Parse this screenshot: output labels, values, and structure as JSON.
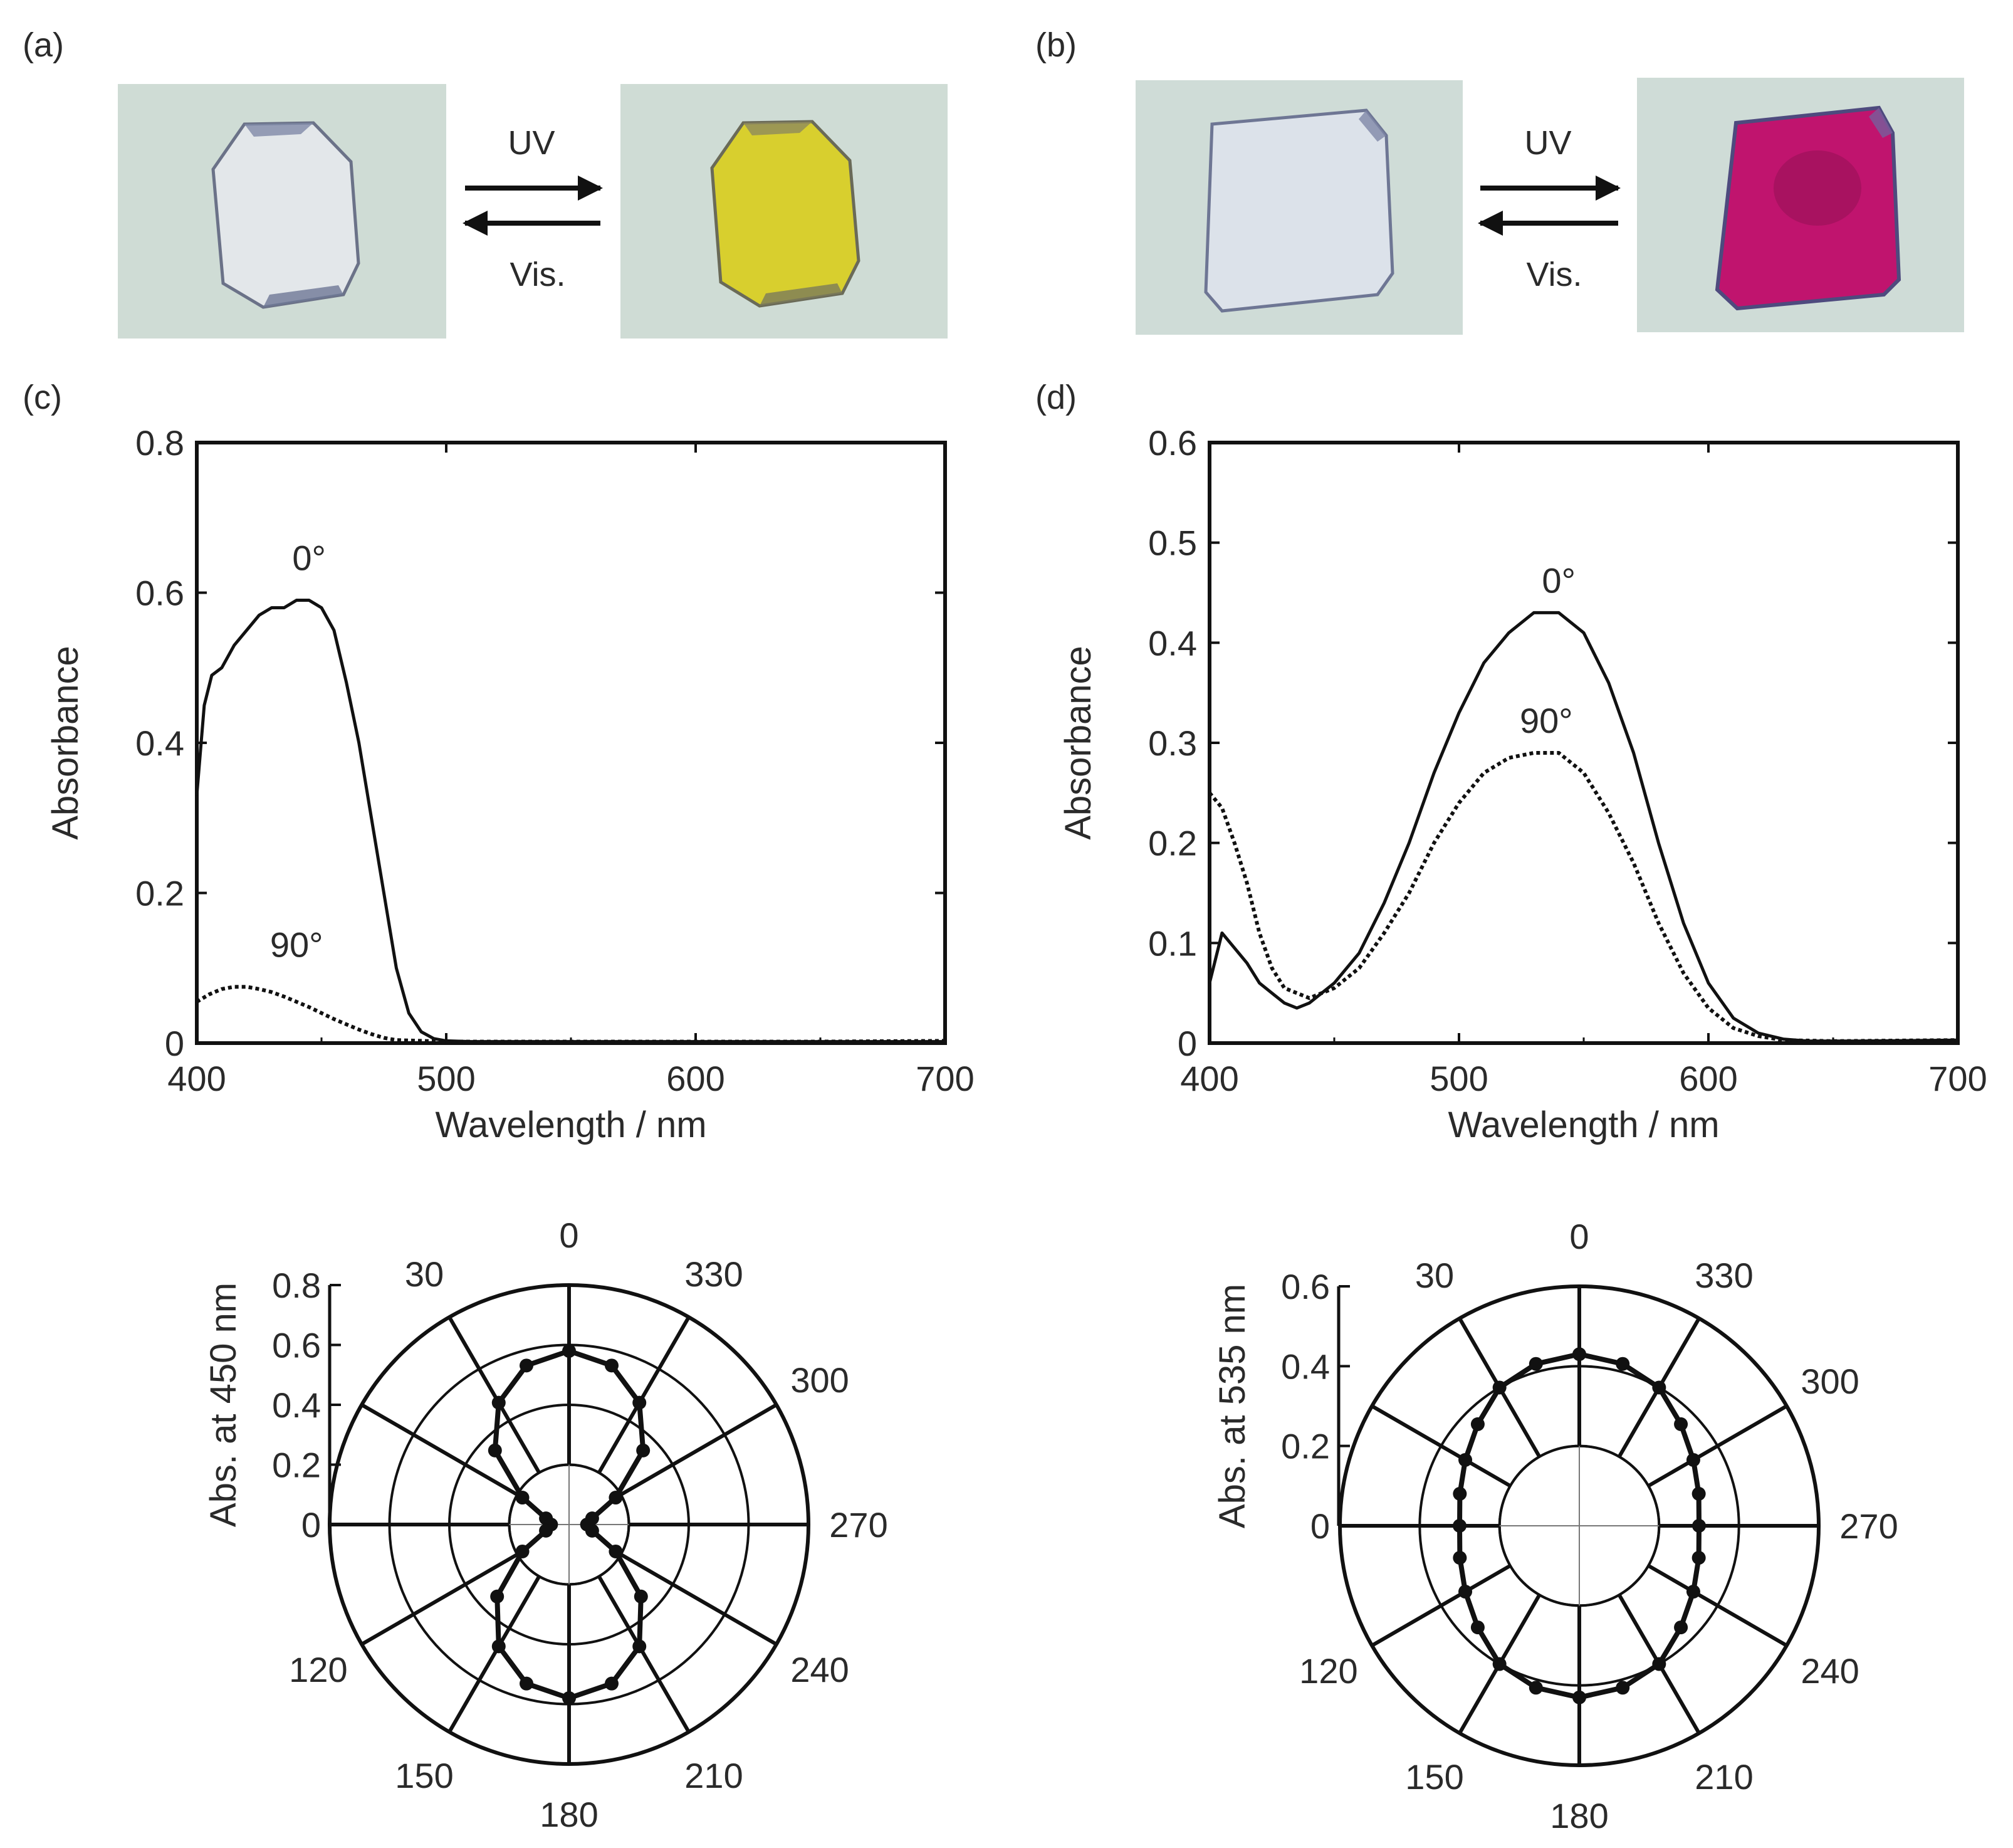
{
  "panels": {
    "a": {
      "label": "(a)",
      "forward": "UV",
      "reverse": "Vis.",
      "colors": {
        "background": "#cfdcd5",
        "before": "#e3e7ea",
        "after": "#d8cf2e",
        "edge": "#5a6070"
      }
    },
    "b": {
      "label": "(b)",
      "forward": "UV",
      "reverse": "Vis.",
      "colors": {
        "background": "#cfdcd7",
        "before": "#dce2ea",
        "after": "#c0146e",
        "edge": "#4a4a7a"
      }
    },
    "c": {
      "label": "(c)"
    },
    "d": {
      "label": "(d)"
    }
  },
  "chart_data": [
    {
      "id": "c-spectrum",
      "type": "line",
      "xlabel": "Wavelength / nm",
      "ylabel": "Absorbance",
      "xlim": [
        400,
        700
      ],
      "ylim": [
        0,
        0.8
      ],
      "xticks": [
        "400",
        "500",
        "600",
        "700"
      ],
      "yticks": [
        "0",
        "0.2",
        "0.4",
        "0.6",
        "0.8"
      ],
      "ytick_values": [
        0,
        0.2,
        0.4,
        0.6,
        0.8
      ],
      "series": [
        {
          "name": "0°",
          "style": "solid",
          "x": [
            400,
            403,
            406,
            410,
            415,
            420,
            425,
            430,
            435,
            440,
            445,
            450,
            455,
            460,
            465,
            470,
            475,
            480,
            485,
            490,
            495,
            500,
            510,
            520,
            540,
            560,
            600,
            650,
            700
          ],
          "y": [
            0.33,
            0.45,
            0.49,
            0.5,
            0.53,
            0.55,
            0.57,
            0.58,
            0.58,
            0.59,
            0.59,
            0.58,
            0.55,
            0.48,
            0.4,
            0.3,
            0.2,
            0.1,
            0.04,
            0.015,
            0.006,
            0.003,
            0.002,
            0.002,
            0.002,
            0.002,
            0.002,
            0.002,
            0.002
          ],
          "label_x": 445,
          "label_y": 0.63
        },
        {
          "name": "90°",
          "style": "dotted",
          "x": [
            400,
            405,
            410,
            415,
            420,
            425,
            430,
            435,
            440,
            445,
            450,
            455,
            460,
            465,
            470,
            475,
            480,
            490,
            500,
            550,
            600,
            650,
            700
          ],
          "y": [
            0.055,
            0.065,
            0.072,
            0.075,
            0.075,
            0.072,
            0.068,
            0.062,
            0.055,
            0.048,
            0.04,
            0.032,
            0.025,
            0.018,
            0.012,
            0.007,
            0.004,
            0.003,
            0.002,
            0.002,
            0.002,
            0.002,
            0.003
          ],
          "label_x": 440,
          "label_y": 0.115
        }
      ]
    },
    {
      "id": "d-spectrum",
      "type": "line",
      "xlabel": "Wavelength / nm",
      "ylabel": "Absorbance",
      "xlim": [
        400,
        700
      ],
      "ylim": [
        0,
        0.6
      ],
      "xticks": [
        "400",
        "500",
        "600",
        "700"
      ],
      "yticks": [
        "0",
        "0.1",
        "0.2",
        "0.3",
        "0.4",
        "0.5",
        "0.6"
      ],
      "ytick_values": [
        0,
        0.1,
        0.2,
        0.3,
        0.4,
        0.5,
        0.6
      ],
      "series": [
        {
          "name": "0°",
          "style": "solid",
          "x": [
            400,
            405,
            410,
            415,
            420,
            425,
            430,
            435,
            440,
            450,
            460,
            470,
            480,
            490,
            500,
            510,
            520,
            530,
            540,
            550,
            560,
            570,
            580,
            590,
            600,
            610,
            620,
            630,
            640,
            660,
            700
          ],
          "y": [
            0.06,
            0.11,
            0.095,
            0.08,
            0.06,
            0.05,
            0.04,
            0.035,
            0.04,
            0.06,
            0.09,
            0.14,
            0.2,
            0.27,
            0.33,
            0.38,
            0.41,
            0.43,
            0.43,
            0.41,
            0.36,
            0.29,
            0.2,
            0.12,
            0.06,
            0.025,
            0.01,
            0.004,
            0.002,
            0.002,
            0.003
          ],
          "label_x": 540,
          "label_y": 0.45
        },
        {
          "name": "90°",
          "style": "dotted",
          "x": [
            400,
            405,
            410,
            415,
            420,
            425,
            430,
            440,
            450,
            460,
            470,
            480,
            490,
            500,
            510,
            520,
            530,
            540,
            550,
            560,
            570,
            580,
            590,
            600,
            610,
            620,
            630,
            650,
            700
          ],
          "y": [
            0.25,
            0.235,
            0.2,
            0.16,
            0.11,
            0.075,
            0.055,
            0.045,
            0.055,
            0.075,
            0.11,
            0.15,
            0.2,
            0.24,
            0.27,
            0.285,
            0.29,
            0.29,
            0.27,
            0.23,
            0.18,
            0.12,
            0.07,
            0.035,
            0.015,
            0.007,
            0.003,
            0.002,
            0.003
          ],
          "label_x": 535,
          "label_y": 0.31
        }
      ]
    },
    {
      "id": "c-polar",
      "type": "polar",
      "ylabel": "Abs. at 450 nm",
      "rlim": [
        0,
        0.8
      ],
      "rticks": [
        "0",
        "0.2",
        "0.4",
        "0.6",
        "0.8"
      ],
      "rtick_values": [
        0,
        0.2,
        0.4,
        0.6,
        0.8
      ],
      "angle_labels": [
        "0",
        "30",
        "300",
        "330",
        "270",
        "240",
        "210",
        "180",
        "150",
        "120"
      ],
      "angle_values": [
        0,
        30,
        300,
        330,
        270,
        240,
        210,
        180,
        150,
        120
      ],
      "theta": [
        0,
        15,
        30,
        45,
        60,
        75,
        90,
        105,
        120,
        135,
        150,
        165,
        180,
        195,
        210,
        225,
        240,
        255,
        270,
        285,
        300,
        315,
        330,
        345
      ],
      "r": [
        0.58,
        0.55,
        0.47,
        0.35,
        0.18,
        0.08,
        0.06,
        0.08,
        0.18,
        0.34,
        0.47,
        0.55,
        0.58,
        0.55,
        0.47,
        0.34,
        0.18,
        0.08,
        0.06,
        0.08,
        0.18,
        0.35,
        0.47,
        0.55
      ]
    },
    {
      "id": "d-polar",
      "type": "polar",
      "ylabel": "Abs. at 535 nm",
      "rlim": [
        0,
        0.6
      ],
      "rticks": [
        "0",
        "0.2",
        "0.4",
        "0.6"
      ],
      "rtick_values": [
        0,
        0.2,
        0.4,
        0.6
      ],
      "angle_labels": [
        "0",
        "30",
        "300",
        "330",
        "270",
        "240",
        "210",
        "180",
        "150",
        "120"
      ],
      "angle_values": [
        0,
        30,
        300,
        330,
        270,
        240,
        210,
        180,
        150,
        120
      ],
      "theta": [
        0,
        15,
        30,
        45,
        60,
        75,
        90,
        105,
        120,
        135,
        150,
        165,
        180,
        195,
        210,
        225,
        240,
        255,
        270,
        285,
        300,
        315,
        330,
        345
      ],
      "r": [
        0.43,
        0.42,
        0.4,
        0.36,
        0.33,
        0.31,
        0.3,
        0.31,
        0.33,
        0.36,
        0.4,
        0.42,
        0.43,
        0.42,
        0.4,
        0.36,
        0.33,
        0.31,
        0.3,
        0.31,
        0.33,
        0.36,
        0.4,
        0.42
      ]
    }
  ]
}
